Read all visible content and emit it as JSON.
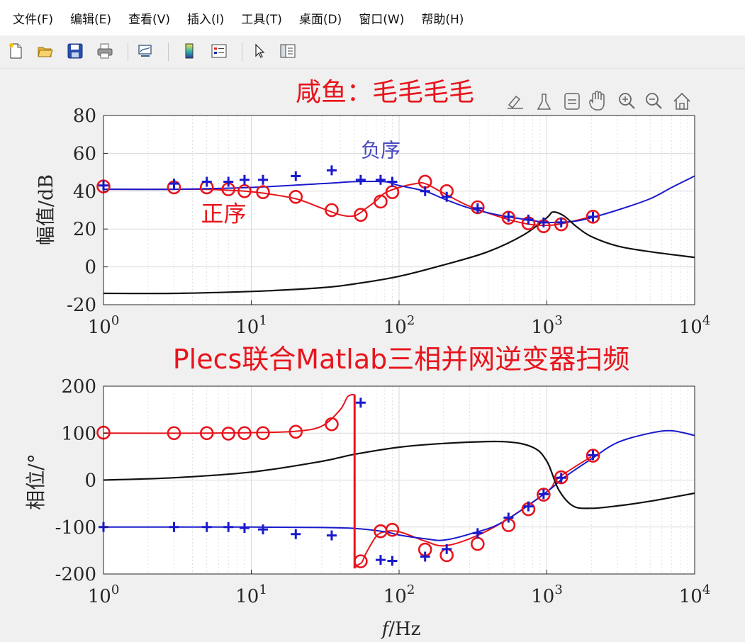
{
  "menu": [
    "文件(F)",
    "编辑(E)",
    "查看(V)",
    "插入(I)",
    "工具(T)",
    "桌面(D)",
    "窗口(W)",
    "帮助(H)"
  ],
  "toolbar_icons": [
    "new-file-icon",
    "open-folder-icon",
    "save-icon",
    "print-icon",
    "link-figure-icon",
    "colorbar-icon",
    "legend-icon",
    "pointer-icon",
    "property-inspector-icon"
  ],
  "axes_toolbar_icons": [
    "brush-edit-icon",
    "data-brush-icon",
    "data-tips-icon",
    "pan-hand-icon",
    "zoom-in-icon",
    "zoom-out-icon",
    "home-icon"
  ],
  "colors": {
    "positive": "#e8141c",
    "negative": "#1a1acc",
    "grid": "#d9d9d9",
    "black_curve": "#111111",
    "annotation_red": "#e8141c"
  },
  "chart_data": [
    {
      "type": "line",
      "title": "咸鱼：毛毛毛毛",
      "xlabel": "",
      "ylabel": "幅值/dB",
      "xscale": "log",
      "xlim": [
        1,
        10000
      ],
      "ylim": [
        -20,
        80
      ],
      "xticks": [
        1,
        10,
        100,
        1000,
        10000
      ],
      "xtick_labels": [
        {
          "base": "10",
          "exp": "0"
        },
        {
          "base": "10",
          "exp": "1"
        },
        {
          "base": "10",
          "exp": "2"
        },
        {
          "base": "10",
          "exp": "3"
        },
        {
          "base": "10",
          "exp": "4"
        }
      ],
      "yticks": [
        -20,
        0,
        20,
        40,
        60,
        80
      ],
      "grid": true,
      "annotations": [
        {
          "text": "负序",
          "x": 75,
          "y": 58,
          "color": "#4a4ac0"
        },
        {
          "text": "正序",
          "x": 6.5,
          "y": 24,
          "color": "#e8141c"
        }
      ],
      "series": [
        {
          "role": "positive-curve",
          "color": "#e8141c",
          "x": [
            1,
            3,
            5,
            7,
            9,
            12,
            20,
            30,
            40,
            50,
            60,
            70,
            80,
            100,
            130,
            150,
            200,
            300,
            500,
            700,
            900,
            1200,
            2000
          ],
          "y": [
            41,
            41,
            41,
            40.5,
            40,
            39,
            36,
            31,
            27.5,
            27,
            31,
            35,
            39,
            42,
            44,
            44,
            39,
            32,
            26,
            23,
            22,
            22.5,
            26.5
          ]
        },
        {
          "role": "negative-curve",
          "color": "#1a1acc",
          "x": [
            1,
            3,
            10,
            30,
            50,
            80,
            100,
            150,
            200,
            300,
            500,
            800,
            1000,
            1500,
            2000,
            3000,
            5000,
            7000,
            10000
          ],
          "y": [
            41,
            41,
            42,
            44,
            45,
            45,
            43,
            40,
            36,
            31,
            27,
            24.5,
            23.5,
            24,
            26,
            30,
            36,
            42,
            48
          ]
        },
        {
          "role": "black-curve",
          "color": "#111111",
          "x": [
            1,
            3,
            10,
            30,
            50,
            100,
            200,
            400,
            700,
            1000,
            1100,
            1300,
            1600,
            2000,
            3000,
            5000,
            10000
          ],
          "y": [
            -14,
            -14,
            -13,
            -11,
            -9,
            -5,
            1,
            8,
            17,
            26,
            29,
            27,
            21,
            16,
            11,
            8,
            5
          ]
        },
        {
          "role": "positive-markers",
          "marker": "o",
          "color": "#e8141c",
          "x": [
            1,
            3,
            5,
            7,
            9,
            12,
            20,
            35,
            55,
            75,
            90,
            150,
            210,
            340,
            550,
            750,
            950,
            1250,
            2050
          ],
          "y": [
            42.5,
            42,
            42,
            41,
            40,
            39.5,
            37,
            30,
            27.5,
            34.5,
            39.5,
            45,
            40,
            31.5,
            26,
            23,
            21.5,
            22.5,
            26.5
          ]
        },
        {
          "role": "negative-markers",
          "marker": "+",
          "color": "#1a1acc",
          "x": [
            1,
            3,
            5,
            7,
            9,
            12,
            20,
            35,
            55,
            75,
            90,
            150,
            210,
            340,
            550,
            750,
            950,
            1250,
            2050
          ],
          "y": [
            43,
            44,
            45,
            45,
            46,
            46,
            48,
            51,
            46,
            46,
            45,
            40,
            37,
            31,
            26.5,
            25,
            23.5,
            23.5,
            26.5
          ]
        }
      ]
    },
    {
      "type": "line",
      "title": "Plecs联合Matlab三相并网逆变器扫频",
      "xlabel_var": "f",
      "xlabel_unit": "/Hz",
      "ylabel": "相位/°",
      "xscale": "log",
      "xlim": [
        1,
        10000
      ],
      "ylim": [
        -200,
        200
      ],
      "xticks": [
        1,
        10,
        100,
        1000,
        10000
      ],
      "xtick_labels": [
        {
          "base": "10",
          "exp": "0"
        },
        {
          "base": "10",
          "exp": "1"
        },
        {
          "base": "10",
          "exp": "2"
        },
        {
          "base": "10",
          "exp": "3"
        },
        {
          "base": "10",
          "exp": "4"
        }
      ],
      "yticks": [
        -200,
        -100,
        0,
        100,
        200
      ],
      "grid": true,
      "series": [
        {
          "role": "positive-curve-upper",
          "color": "#e8141c",
          "x": [
            1,
            5,
            10,
            20,
            30,
            40,
            45,
            50
          ],
          "y": [
            100,
            100,
            101,
            104,
            115,
            150,
            178,
            182
          ]
        },
        {
          "role": "positive-curve-lower",
          "color": "#e8141c",
          "x": [
            50,
            53,
            56,
            60,
            70,
            80,
            100,
            150,
            200,
            300,
            500,
            1000,
            1200,
            2000
          ],
          "y": [
            -188,
            -180,
            -175,
            -155,
            -120,
            -110,
            -110,
            -130,
            -140,
            -125,
            -90,
            -25,
            5,
            50
          ]
        },
        {
          "role": "negative-curve",
          "color": "#1a1acc",
          "x": [
            1,
            10,
            30,
            50,
            80,
            100,
            150,
            200,
            300,
            500,
            1000,
            1300,
            2000,
            3000,
            5000,
            7000,
            10000
          ],
          "y": [
            -100,
            -100,
            -101,
            -103,
            -110,
            -117,
            -125,
            -128,
            -115,
            -90,
            -25,
            5,
            45,
            80,
            100,
            105,
            95
          ]
        },
        {
          "role": "black-curve",
          "color": "#111111",
          "x": [
            1,
            3,
            10,
            30,
            50,
            100,
            200,
            500,
            800,
            1000,
            1200,
            1500,
            2000,
            3000,
            5000,
            10000
          ],
          "y": [
            0,
            5,
            17,
            40,
            55,
            70,
            78,
            82,
            70,
            40,
            -20,
            -55,
            -60,
            -55,
            -45,
            -28
          ]
        },
        {
          "role": "positive-markers",
          "marker": "o",
          "color": "#e8141c",
          "x": [
            1,
            3,
            5,
            7,
            9,
            12,
            20,
            35,
            55,
            75,
            90,
            150,
            210,
            340,
            550,
            750,
            950,
            1250,
            2050
          ],
          "y": [
            101,
            100,
            100,
            99,
            100,
            100,
            103,
            119,
            -173,
            -109,
            -106,
            -148,
            -160,
            -136,
            -96,
            -62,
            -31,
            6,
            52
          ]
        },
        {
          "role": "negative-markers",
          "marker": "+",
          "color": "#1a1acc",
          "x": [
            1,
            3,
            5,
            7,
            9,
            12,
            20,
            35,
            55,
            75,
            90,
            150,
            210,
            340,
            550,
            750,
            950,
            1250,
            2050
          ],
          "y": [
            -100,
            -100,
            -100,
            -100,
            -102,
            -105,
            -115,
            -118,
            165,
            -170,
            -172,
            -163,
            -147,
            -113,
            -80,
            -56,
            -30,
            5,
            53
          ]
        }
      ]
    }
  ]
}
